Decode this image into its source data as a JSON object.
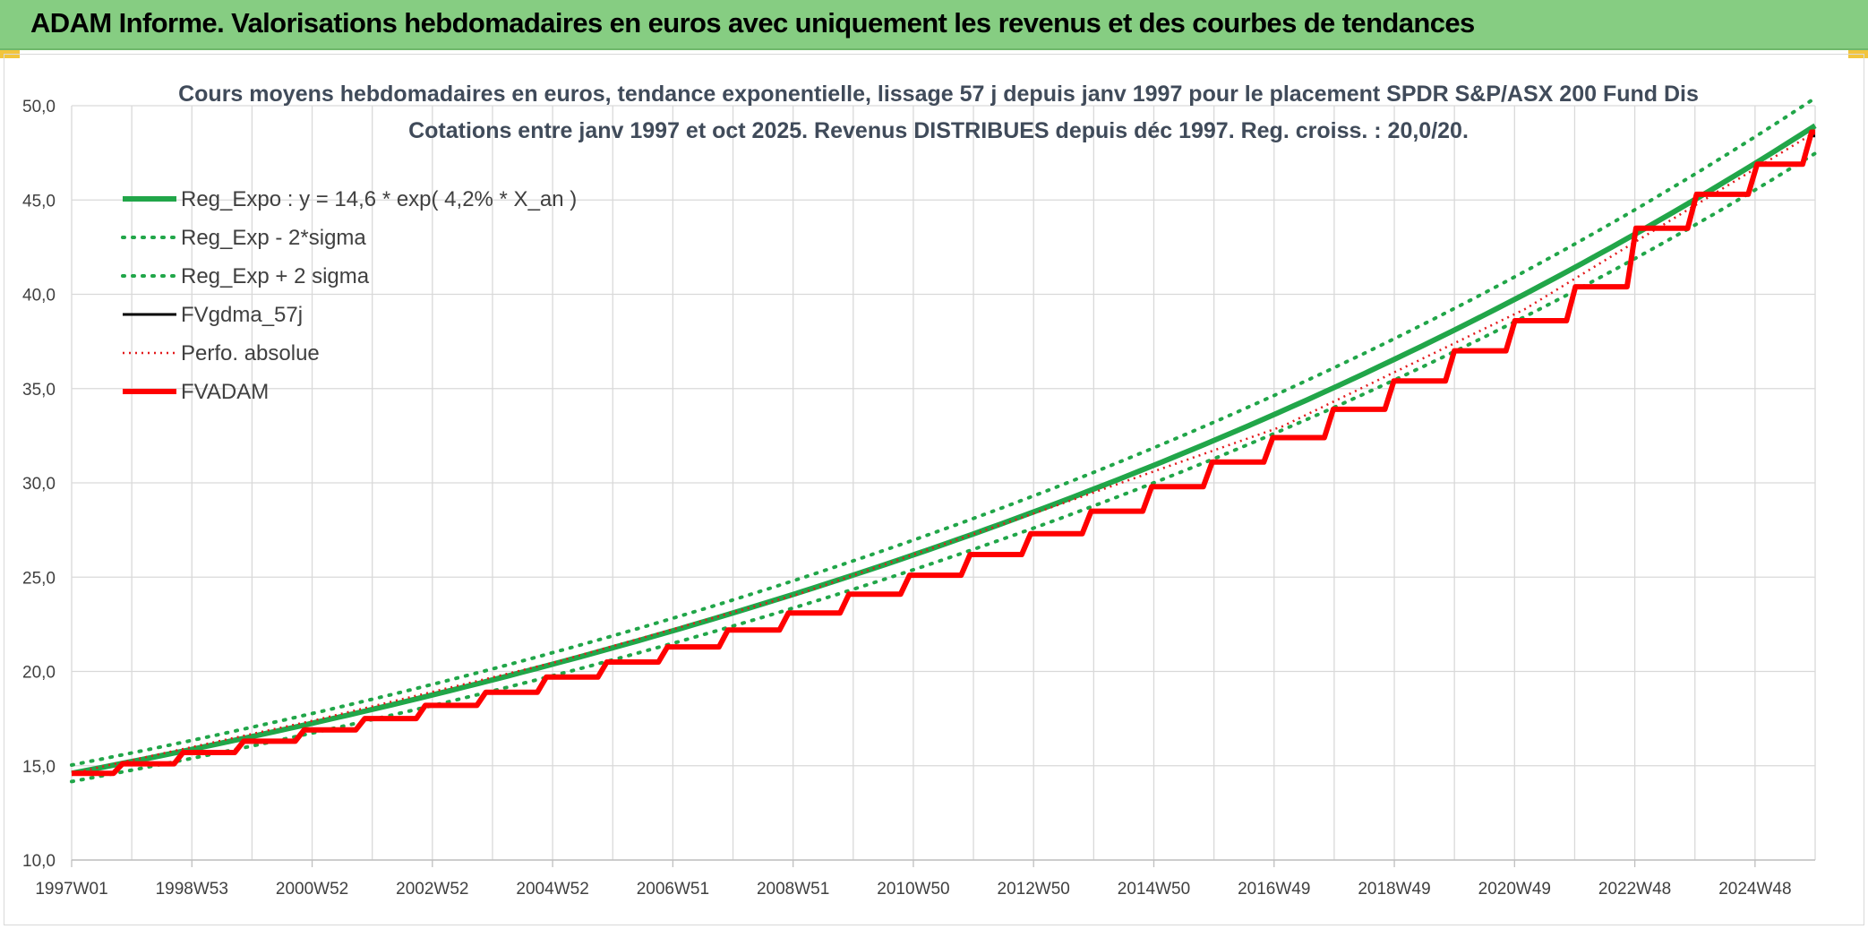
{
  "header": {
    "title": "ADAM Informe. Valorisations hebdomadaires en euros avec uniquement les revenus et des courbes de tendances"
  },
  "chart_data": {
    "type": "line",
    "title": "Cours moyens hebdomadaires en euros, tendance exponentielle, lissage 57 j depuis janv 1997 pour le placement SPDR S&P/ASX 200 Fund Dis",
    "subtitle": "Cotations entre janv 1997 et oct 2025. Revenus DISTRIBUES depuis déc 1997. Reg. croiss. : 20,0/20.",
    "xlabel": "",
    "ylabel": "",
    "x_range": [
      1997.0,
      2025.8
    ],
    "ylim": [
      10,
      50
    ],
    "y_ticks": [
      "10,0",
      "15,0",
      "20,0",
      "25,0",
      "30,0",
      "35,0",
      "40,0",
      "45,0",
      "50,0"
    ],
    "x_tick_labels": [
      "1997W01",
      "1998W53",
      "2000W52",
      "2002W52",
      "2004W52",
      "2006W51",
      "2008W51",
      "2010W50",
      "2012W50",
      "2014W50",
      "2016W49",
      "2018W49",
      "2020W49",
      "2022W48",
      "2024W48"
    ],
    "grid": true,
    "legend_position": "top-left",
    "regression": {
      "a": 14.6,
      "rate": 0.042
    },
    "series": [
      {
        "name": "Reg_Expo : y = 14,6 * exp( 4,2% *  X_an )",
        "color": "#21a649",
        "style": "solid",
        "x": [
          1997,
          2000,
          2003,
          2006,
          2009,
          2012,
          2015,
          2018,
          2021,
          2024,
          2025.8
        ],
        "values": [
          14.6,
          16.5,
          18.6,
          21.1,
          23.8,
          26.9,
          30.4,
          34.4,
          38.9,
          43.9,
          47.4
        ]
      },
      {
        "name": "Reg_Exp - 2*sigma",
        "color": "#21a649",
        "style": "dotted",
        "x": [
          1997,
          2000,
          2003,
          2006,
          2009,
          2012,
          2015,
          2018,
          2021,
          2024,
          2025.8
        ],
        "values": [
          14.2,
          16.0,
          18.1,
          20.5,
          23.1,
          26.1,
          29.5,
          33.4,
          37.7,
          42.6,
          46.0
        ]
      },
      {
        "name": "Reg_Exp + 2 sigma",
        "color": "#21a649",
        "style": "dotted",
        "x": [
          1997,
          2000,
          2003,
          2006,
          2009,
          2012,
          2015,
          2018,
          2021,
          2024,
          2025.8
        ],
        "values": [
          15.0,
          17.0,
          19.2,
          21.7,
          24.5,
          27.7,
          31.3,
          35.4,
          40.1,
          45.2,
          48.8
        ]
      },
      {
        "name": "FVgdma_57j",
        "color": "#000000",
        "style": "solid",
        "x": [
          1997.0,
          1997.9,
          1998.9,
          1999.9,
          2000.9,
          2001.9,
          2002.9,
          2003.9,
          2004.9,
          2005.9,
          2006.9,
          2007.9,
          2008.9,
          2009.9,
          2010.9,
          2011.9,
          2012.9,
          2013.9,
          2014.9,
          2015.9,
          2016.9,
          2017.9,
          2018.9,
          2019.9,
          2020.9,
          2021.9,
          2022.9,
          2023.9,
          2024.9,
          2025.8
        ],
        "values": [
          14.6,
          15.1,
          15.7,
          16.3,
          16.9,
          17.5,
          18.2,
          18.9,
          19.7,
          20.5,
          21.3,
          22.2,
          23.1,
          24.1,
          25.1,
          26.2,
          27.3,
          28.5,
          29.8,
          31.1,
          32.4,
          33.9,
          35.4,
          37.0,
          38.6,
          40.4,
          43.5,
          45.3,
          46.9,
          48.4
        ]
      },
      {
        "name": "Perfo. absolue",
        "color": "#e31a1c",
        "style": "dotted",
        "x": [
          1997.0,
          2001.0,
          2005.0,
          2009.0,
          2013.0,
          2017.0,
          2021.0,
          2025.8
        ],
        "values": [
          14.6,
          17.4,
          20.5,
          24.1,
          28.5,
          33.0,
          39.2,
          48.6
        ]
      },
      {
        "name": "FVADAM",
        "color": "#ff0000",
        "style": "solid",
        "x": [
          1997.0,
          1997.9,
          1998.9,
          1999.9,
          2000.9,
          2001.9,
          2002.9,
          2003.9,
          2004.9,
          2005.9,
          2006.9,
          2007.9,
          2008.9,
          2009.9,
          2010.9,
          2011.9,
          2012.9,
          2013.9,
          2014.9,
          2015.9,
          2016.9,
          2017.9,
          2018.9,
          2019.9,
          2020.9,
          2021.9,
          2022.9,
          2023.9,
          2024.9,
          2025.8
        ],
        "values": [
          14.6,
          15.1,
          15.7,
          16.3,
          16.9,
          17.5,
          18.2,
          18.9,
          19.7,
          20.5,
          21.3,
          22.2,
          23.1,
          24.1,
          25.1,
          26.2,
          27.3,
          28.5,
          29.8,
          31.1,
          32.4,
          33.9,
          35.4,
          37.0,
          38.6,
          40.4,
          43.5,
          45.3,
          46.9,
          48.6
        ]
      }
    ]
  }
}
